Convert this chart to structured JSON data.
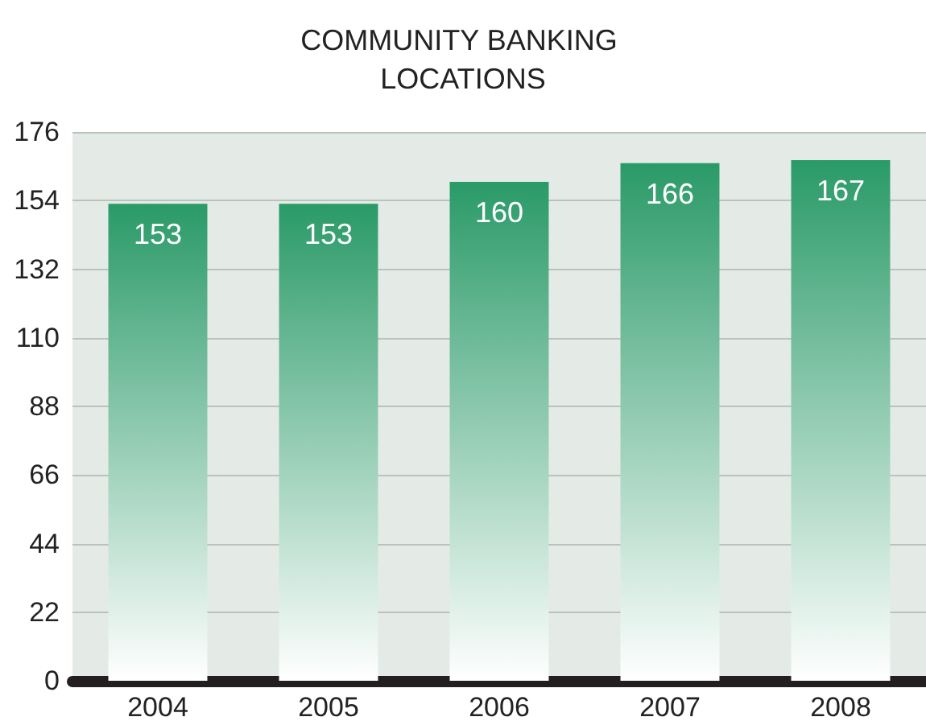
{
  "chart_data": {
    "type": "bar",
    "title": "COMMUNITY BANKING LOCATIONS",
    "categories": [
      "2004",
      "2005",
      "2006",
      "2007",
      "2008"
    ],
    "values": [
      153,
      153,
      160,
      166,
      167
    ],
    "color": "#2a9a68",
    "ylim": [
      0,
      176
    ],
    "yticks": [
      0,
      22,
      44,
      66,
      88,
      110,
      132,
      154,
      176
    ],
    "grid": "y",
    "data_labels": true
  }
}
